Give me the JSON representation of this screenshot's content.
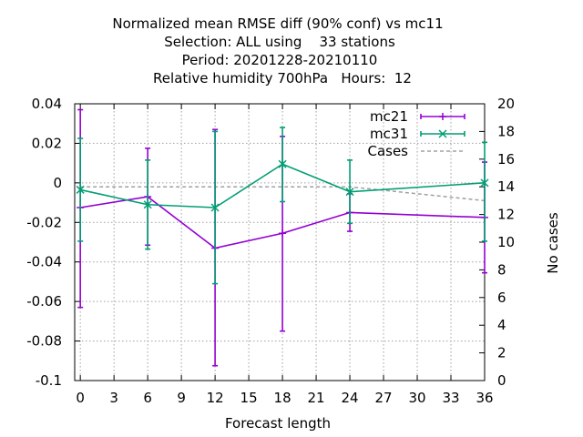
{
  "chart_data": {
    "type": "line",
    "title_lines": [
      "Normalized mean RMSE diff (90% conf) vs mc11",
      "Selection: ALL using    33 stations",
      "Period: 20201228-20210110",
      "Relative humidity 700hPa   Hours:  12"
    ],
    "xlabel": "Forecast length",
    "ylabel": "",
    "y2label": "No cases",
    "xlim": [
      -0.5,
      36
    ],
    "ylim": [
      -0.1,
      0.04
    ],
    "y2lim": [
      0,
      20
    ],
    "xticks": [
      0,
      3,
      6,
      9,
      12,
      15,
      18,
      21,
      24,
      27,
      30,
      33,
      36
    ],
    "yticks": [
      -0.1,
      -0.08,
      -0.06,
      -0.04,
      -0.02,
      0,
      0.02,
      0.04
    ],
    "ytick_labels": [
      "-0.1",
      "-0.08",
      "-0.06",
      "-0.04",
      "-0.02",
      "0",
      "0.02",
      "0.04"
    ],
    "y2ticks": [
      0,
      2,
      4,
      6,
      8,
      10,
      12,
      14,
      16,
      18,
      20
    ],
    "grid": true,
    "legend_position": "top-right",
    "series": [
      {
        "name": "mc21",
        "color": "#9400d3",
        "marker": "plus",
        "x": [
          0,
          6,
          12,
          18,
          24,
          36
        ],
        "y": [
          -0.0125,
          -0.007,
          -0.033,
          -0.0255,
          -0.015,
          -0.0175
        ],
        "err_low": [
          -0.063,
          -0.0315,
          -0.0925,
          -0.075,
          -0.0245,
          -0.0455
        ],
        "err_high": [
          0.037,
          0.0175,
          0.027,
          0.0235,
          -0.0055,
          0.0105
        ]
      },
      {
        "name": "mc31",
        "color": "#009e73",
        "marker": "cross",
        "x": [
          0,
          6,
          12,
          18,
          24,
          36
        ],
        "y": [
          -0.0035,
          -0.011,
          -0.0125,
          0.0095,
          -0.0045,
          0.0
        ],
        "err_low": [
          -0.0295,
          -0.0335,
          -0.051,
          -0.0095,
          -0.0205,
          -0.0295
        ],
        "err_high": [
          0.0225,
          0.0115,
          0.026,
          0.028,
          0.0115,
          0.0205
        ]
      }
    ],
    "cases": {
      "name": "Cases",
      "color": "#a0a0a0",
      "x": [
        0,
        6,
        12,
        18,
        24,
        36
      ],
      "y": [
        14,
        14,
        14,
        14,
        14,
        13
      ]
    }
  }
}
